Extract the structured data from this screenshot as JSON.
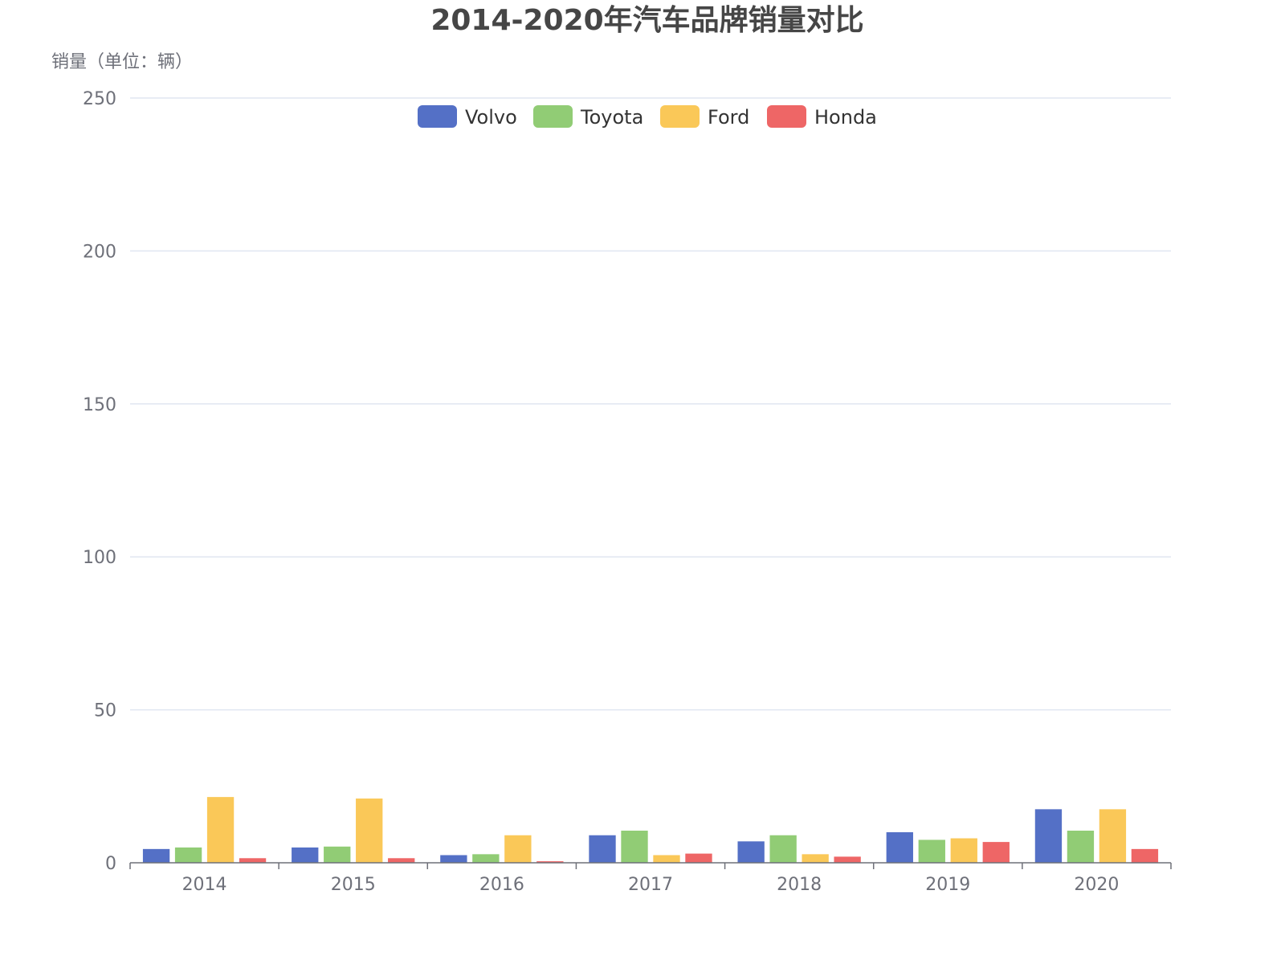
{
  "chart_data": {
    "type": "bar",
    "title": "2014-2020年汽车品牌销量对比",
    "ylabel": "销量（单位：辆）",
    "xlabel": "",
    "categories": [
      "2014",
      "2015",
      "2016",
      "2017",
      "2018",
      "2019",
      "2020"
    ],
    "ylim": [
      0,
      250
    ],
    "yticks": [
      0,
      50,
      100,
      150,
      200,
      250
    ],
    "grid": true,
    "legend_position": "top-center",
    "series": [
      {
        "name": "Volvo",
        "color": "#5470c6",
        "values": [
          4.5,
          5,
          2.5,
          9,
          7,
          10,
          17.5
        ]
      },
      {
        "name": "Toyota",
        "color": "#91cc75",
        "values": [
          5,
          5.3,
          2.8,
          10.5,
          9,
          7.5,
          10.5
        ]
      },
      {
        "name": "Ford",
        "color": "#fac858",
        "values": [
          21.5,
          21,
          9,
          2.5,
          2.8,
          8,
          17.5
        ]
      },
      {
        "name": "Honda",
        "color": "#ee6666",
        "values": [
          1.5,
          1.5,
          0.5,
          3,
          2,
          6.8,
          4.5
        ]
      }
    ]
  }
}
